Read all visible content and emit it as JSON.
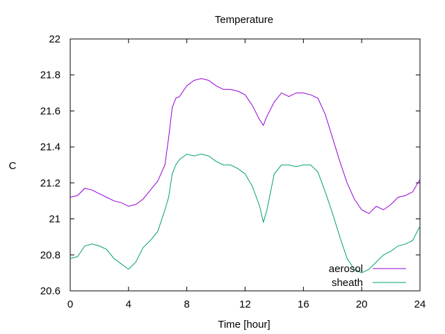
{
  "chart_data": {
    "type": "line",
    "title": "Temperature",
    "xlabel": "Time [hour]",
    "ylabel": "C",
    "xlim": [
      0,
      24
    ],
    "ylim": [
      20.6,
      22
    ],
    "xticks": [
      0,
      4,
      8,
      12,
      16,
      20,
      24
    ],
    "yticks": [
      20.6,
      20.8,
      21,
      21.2,
      21.4,
      21.6,
      21.8,
      22
    ],
    "ytick_labels": [
      "20.6",
      "20.8",
      "21",
      "21.2",
      "21.4",
      "21.6",
      "21.8",
      "22"
    ],
    "grid": false,
    "legend_position": "bottom-right",
    "series": [
      {
        "name": "aerosol",
        "color": "#9400d3",
        "x": [
          0,
          0.5,
          1,
          1.5,
          2,
          2.5,
          3,
          3.5,
          4,
          4.5,
          5,
          5.5,
          6,
          6.5,
          6.75,
          7,
          7.25,
          7.5,
          8,
          8.5,
          9,
          9.5,
          10,
          10.5,
          11,
          11.5,
          12,
          12.5,
          13,
          13.25,
          13.5,
          14,
          14.5,
          15,
          15.5,
          16,
          16.5,
          17,
          17.5,
          18,
          18.5,
          19,
          19.5,
          20,
          20.5,
          21,
          21.5,
          22,
          22.5,
          23,
          23.5,
          24
        ],
        "y": [
          21.12,
          21.13,
          21.17,
          21.16,
          21.14,
          21.12,
          21.1,
          21.09,
          21.07,
          21.08,
          21.11,
          21.16,
          21.21,
          21.3,
          21.45,
          21.62,
          21.67,
          21.68,
          21.74,
          21.77,
          21.78,
          21.77,
          21.74,
          21.72,
          21.72,
          21.71,
          21.69,
          21.63,
          21.55,
          21.52,
          21.57,
          21.65,
          21.7,
          21.68,
          21.7,
          21.7,
          21.69,
          21.67,
          21.58,
          21.45,
          21.32,
          21.2,
          21.11,
          21.05,
          21.03,
          21.07,
          21.05,
          21.08,
          21.12,
          21.13,
          21.15,
          21.22
        ]
      },
      {
        "name": "sheath",
        "color": "#009e73",
        "x": [
          0,
          0.5,
          1,
          1.5,
          2,
          2.5,
          3,
          3.5,
          4,
          4.5,
          5,
          5.5,
          6,
          6.5,
          6.75,
          7,
          7.25,
          7.5,
          8,
          8.5,
          9,
          9.5,
          10,
          10.5,
          11,
          11.5,
          12,
          12.5,
          13,
          13.25,
          13.5,
          14,
          14.5,
          15,
          15.5,
          16,
          16.5,
          17,
          17.5,
          18,
          18.5,
          19,
          19.5,
          20,
          20.5,
          21,
          21.5,
          22,
          22.5,
          23,
          23.5,
          24
        ],
        "y": [
          20.78,
          20.79,
          20.85,
          20.86,
          20.85,
          20.83,
          20.78,
          20.75,
          20.72,
          20.76,
          20.84,
          20.88,
          20.93,
          21.05,
          21.12,
          21.25,
          21.3,
          21.33,
          21.36,
          21.35,
          21.36,
          21.35,
          21.32,
          21.3,
          21.3,
          21.28,
          21.25,
          21.18,
          21.07,
          20.98,
          21.05,
          21.25,
          21.3,
          21.3,
          21.29,
          21.3,
          21.3,
          21.26,
          21.15,
          21.03,
          20.9,
          20.78,
          20.72,
          20.7,
          20.72,
          20.76,
          20.8,
          20.82,
          20.85,
          20.86,
          20.88,
          20.96
        ]
      }
    ]
  }
}
